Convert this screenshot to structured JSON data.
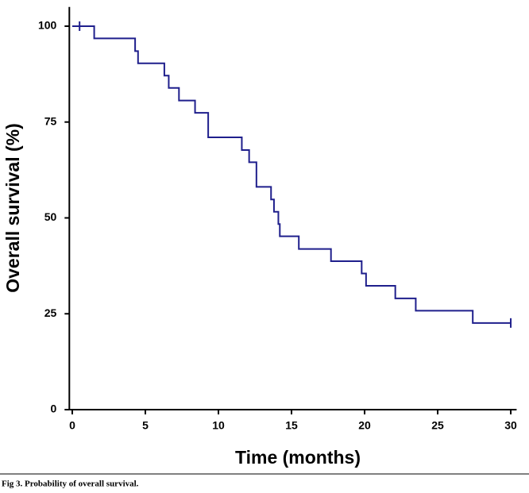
{
  "chart_data": {
    "type": "step",
    "xlabel": "Time (months)",
    "ylabel": "Overall survival (%)",
    "x": [
      0,
      1.5,
      4.3,
      4.5,
      6.3,
      6.6,
      7.3,
      8.4,
      9.3,
      11.6,
      12.1,
      12.6,
      13.6,
      13.8,
      14.1,
      14.2,
      15.5,
      17.7,
      19.8,
      20.1,
      22.1,
      23.5,
      27.4,
      30
    ],
    "series": [
      {
        "values": [
          100,
          96.8,
          93.5,
          90.3,
          87.1,
          83.9,
          80.6,
          77.4,
          71,
          67.7,
          64.5,
          58.1,
          54.8,
          51.6,
          48.4,
          45.2,
          41.9,
          38.7,
          35.5,
          32.3,
          29,
          25.8,
          22.6,
          22.6
        ],
        "color": "#1f1f8c"
      }
    ],
    "censored": {
      "x": [
        0.5,
        30
      ],
      "values": [
        100,
        22.6
      ]
    },
    "xlim": [
      -0.2,
      30.4
    ],
    "ylim": [
      0,
      105
    ],
    "xticks": [
      0,
      5,
      10,
      15,
      20,
      25,
      30
    ],
    "yticks": [
      0,
      25,
      50,
      75,
      100
    ]
  },
  "caption": "Fig 3.  Probability of overall survival."
}
